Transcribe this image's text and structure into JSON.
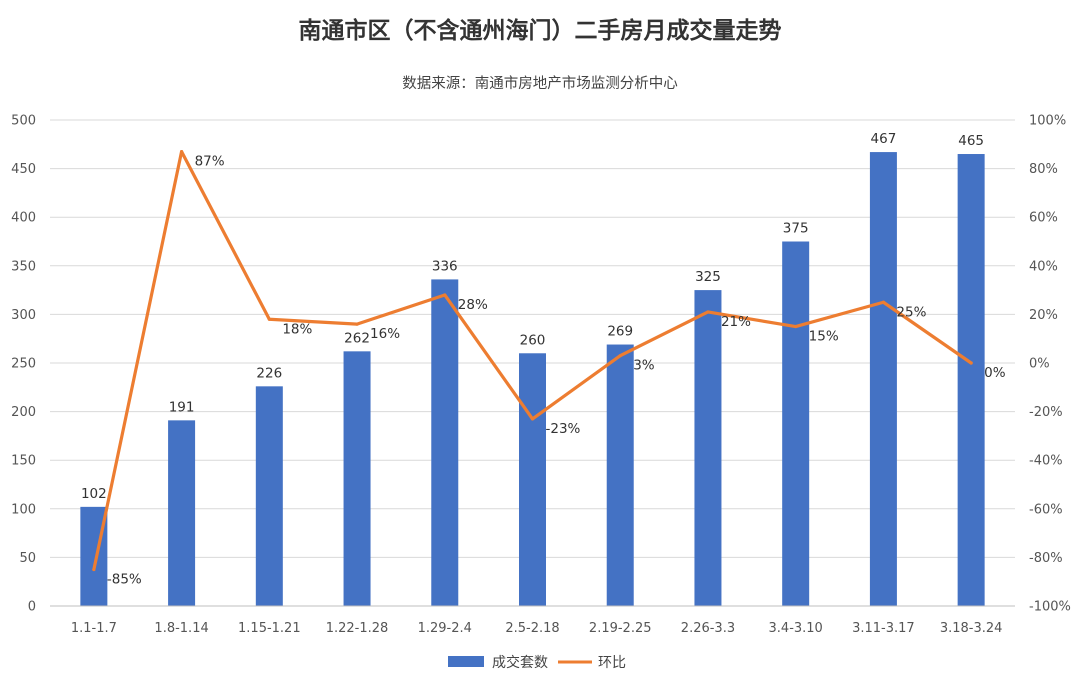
{
  "chart_data": {
    "type": "bar",
    "title": "南通市区（不含通州海门）二手房月成交量走势",
    "subtitle": "数据来源：南通市房地产市场监测分析中心",
    "categories": [
      "1.1-1.7",
      "1.8-1.14",
      "1.15-1.21",
      "1.22-1.28",
      "1.29-2.4",
      "2.5-2.18",
      "2.19-2.25",
      "2.26-3.3",
      "3.4-3.10",
      "3.11-3.17",
      "3.18-3.24"
    ],
    "series": [
      {
        "name": "成交套数",
        "type": "bar",
        "axis": "left",
        "color": "#4472C4",
        "values": [
          102,
          191,
          226,
          262,
          336,
          260,
          269,
          325,
          375,
          467,
          465
        ],
        "labels": [
          "102",
          "191",
          "226",
          "262",
          "336",
          "260",
          "269",
          "325",
          "375",
          "467",
          "465"
        ]
      },
      {
        "name": "环比",
        "type": "line",
        "axis": "right",
        "color": "#ED7D31",
        "values": [
          -85,
          87,
          18,
          16,
          28,
          -23,
          3,
          21,
          15,
          25,
          0
        ],
        "labels": [
          "-85%",
          "87%",
          "18%",
          "16%",
          "28%",
          "-23%",
          "3%",
          "21%",
          "15%",
          "25%",
          "0%"
        ]
      }
    ],
    "y_left": {
      "range": [
        0,
        500
      ],
      "ticks": [
        "0",
        "50",
        "100",
        "150",
        "200",
        "250",
        "300",
        "350",
        "400",
        "450",
        "500"
      ]
    },
    "y_right": {
      "range": [
        -100,
        100
      ],
      "ticks": [
        "-100%",
        "-80%",
        "-60%",
        "-40%",
        "-20%",
        "0%",
        "20%",
        "40%",
        "60%",
        "80%",
        "100%"
      ]
    },
    "grid": true,
    "legend_position": "bottom-center"
  }
}
